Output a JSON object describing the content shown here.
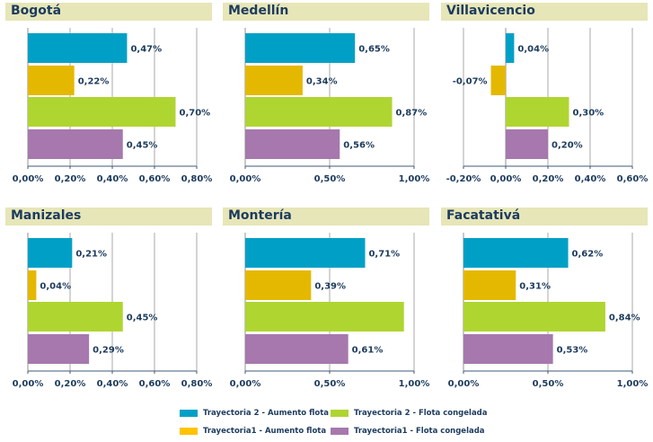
{
  "chart_data": [
    {
      "type": "bar",
      "orientation": "horizontal",
      "title": "Bogotá",
      "categories": [
        "Trayectoria 2 - Aumento flota",
        "Trayectoria1 - Aumento flota",
        "Trayectoria 2 - Flota congelada",
        "Trayectoria1 - Flota congelada"
      ],
      "values": [
        0.47,
        0.22,
        0.7,
        0.45
      ],
      "labels": [
        "0,47%",
        "0,22%",
        "0,70%",
        "0,45%"
      ],
      "xlim": [
        0,
        0.8
      ],
      "xticks": [
        0,
        0.2,
        0.4,
        0.6,
        0.8
      ],
      "xtick_labels": [
        "0,00%",
        "0,20%",
        "0,40%",
        "0,60%",
        "0,80%"
      ],
      "grid": true
    },
    {
      "type": "bar",
      "orientation": "horizontal",
      "title": "Medellín",
      "categories": [
        "Trayectoria 2 - Aumento flota",
        "Trayectoria1 - Aumento flota",
        "Trayectoria 2 - Flota congelada",
        "Trayectoria1 - Flota congelada"
      ],
      "values": [
        0.65,
        0.34,
        0.87,
        0.56
      ],
      "labels": [
        "0,65%",
        "0,34%",
        "0,87%",
        "0,56%"
      ],
      "xlim": [
        0,
        1.0
      ],
      "xticks": [
        0,
        0.5,
        1.0
      ],
      "xtick_labels": [
        "0,00%",
        "0,50%",
        "1,00%"
      ],
      "grid": true
    },
    {
      "type": "bar",
      "orientation": "horizontal",
      "title": "Villavicencio",
      "categories": [
        "Trayectoria 2 - Aumento flota",
        "Trayectoria1 - Aumento flota",
        "Trayectoria 2 - Flota congelada",
        "Trayectoria1 - Flota congelada"
      ],
      "values": [
        0.04,
        -0.07,
        0.3,
        0.2
      ],
      "labels": [
        "0,04%",
        "-0,07%",
        "0,30%",
        "0,20%"
      ],
      "xlim": [
        -0.2,
        0.6
      ],
      "xticks": [
        -0.2,
        0,
        0.2,
        0.4,
        0.6
      ],
      "xtick_labels": [
        "-0,20%",
        "0,00%",
        "0,20%",
        "0,40%",
        "0,60%"
      ],
      "grid": true
    },
    {
      "type": "bar",
      "orientation": "horizontal",
      "title": "Manizales",
      "categories": [
        "Trayectoria 2 - Aumento flota",
        "Trayectoria1 - Aumento flota",
        "Trayectoria 2 - Flota congelada",
        "Trayectoria1 - Flota congelada"
      ],
      "values": [
        0.21,
        0.04,
        0.45,
        0.29
      ],
      "labels": [
        "0,21%",
        "0,04%",
        "0,45%",
        "0,29%"
      ],
      "xlim": [
        0,
        0.8
      ],
      "xticks": [
        0,
        0.2,
        0.4,
        0.6,
        0.8
      ],
      "xtick_labels": [
        "0,00%",
        "0,20%",
        "0,40%",
        "0,60%",
        "0,80%"
      ],
      "grid": true
    },
    {
      "type": "bar",
      "orientation": "horizontal",
      "title": "Montería",
      "categories": [
        "Trayectoria 2 - Aumento flota",
        "Trayectoria1 - Aumento flota",
        "Trayectoria 2 - Flota congelada",
        "Trayectoria1 - Flota congelada"
      ],
      "values": [
        0.71,
        0.39,
        0.94,
        0.61
      ],
      "labels": [
        "0,71%",
        "0,39%",
        "",
        "0,61%"
      ],
      "xlim": [
        0,
        1.0
      ],
      "xticks": [
        0,
        0.5,
        1.0
      ],
      "xtick_labels": [
        "0,00%",
        "0,50%",
        "1,00%"
      ],
      "grid": true
    },
    {
      "type": "bar",
      "orientation": "horizontal",
      "title": "Facatativá",
      "categories": [
        "Trayectoria 2 - Aumento flota",
        "Trayectoria1 - Aumento flota",
        "Trayectoria 2 - Flota congelada",
        "Trayectoria1 - Flota congelada"
      ],
      "values": [
        0.62,
        0.31,
        0.84,
        0.53
      ],
      "labels": [
        "0,62%",
        "0,31%",
        "0,84%",
        "0,53%"
      ],
      "xlim": [
        0,
        1.0
      ],
      "xticks": [
        0,
        0.5,
        1.0
      ],
      "xtick_labels": [
        "0,00%",
        "0,50%",
        "1,00%"
      ],
      "grid": true
    }
  ],
  "legend": {
    "placement": "bottom-center",
    "items": [
      {
        "label": "Trayectoria 2 - Aumento flota",
        "color": "#00a0c6"
      },
      {
        "label": "Trayectoria 2 - Flota congelada",
        "color": "#afd531"
      },
      {
        "label": "Trayectoria1 - Aumento flota",
        "color": "#e5b800"
      },
      {
        "label": "Trayectoria1 - Flota congelada",
        "color": "#a678ad"
      }
    ]
  },
  "colors": {
    "series": [
      "#00a0c6",
      "#e5b800",
      "#afd531",
      "#a678ad"
    ],
    "header_bg": "#e6e6b8",
    "text": "#1d3b5e"
  }
}
